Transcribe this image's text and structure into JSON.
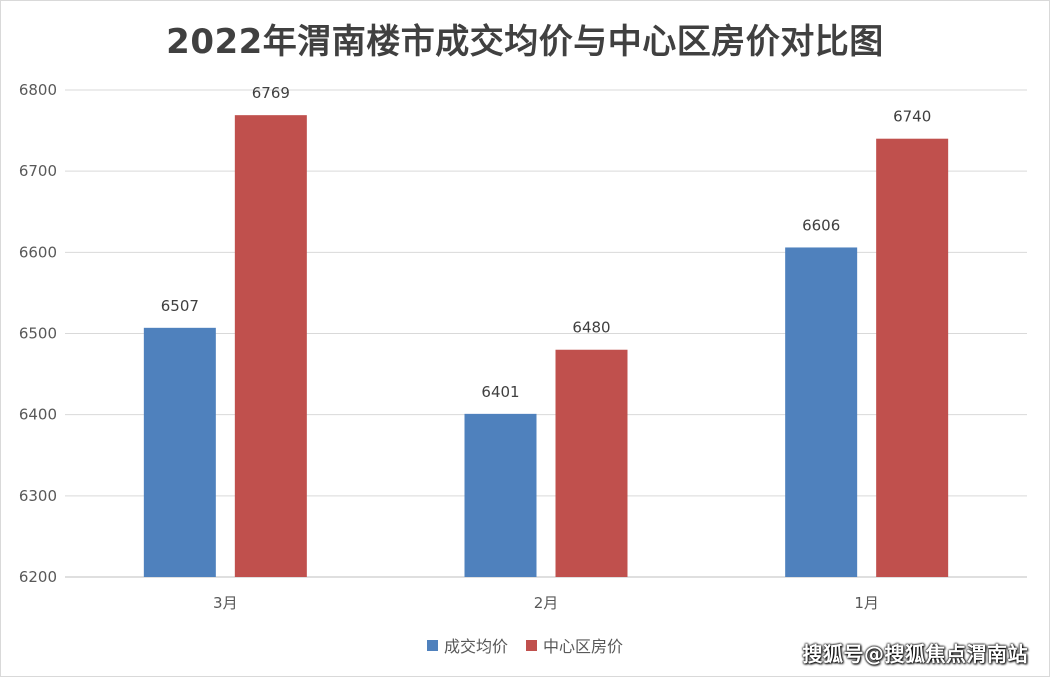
{
  "chart_data": {
    "type": "bar",
    "title": "2022年渭南楼市成交均价与中心区房价对比图",
    "categories": [
      "3月",
      "2月",
      "1月"
    ],
    "series": [
      {
        "name": "成交均价",
        "values": [
          6507,
          6401,
          6606
        ],
        "color": "#4f81bd"
      },
      {
        "name": "中心区房价",
        "values": [
          6769,
          6480,
          6740
        ],
        "color": "#c0504d"
      }
    ],
    "ylim": [
      6200,
      6800
    ],
    "yticks": [
      6200,
      6300,
      6400,
      6500,
      6600,
      6700,
      6800
    ],
    "grid": true,
    "legend_position": "bottom",
    "data_labels": true
  },
  "watermark": "搜狐号@搜狐焦点渭南站"
}
